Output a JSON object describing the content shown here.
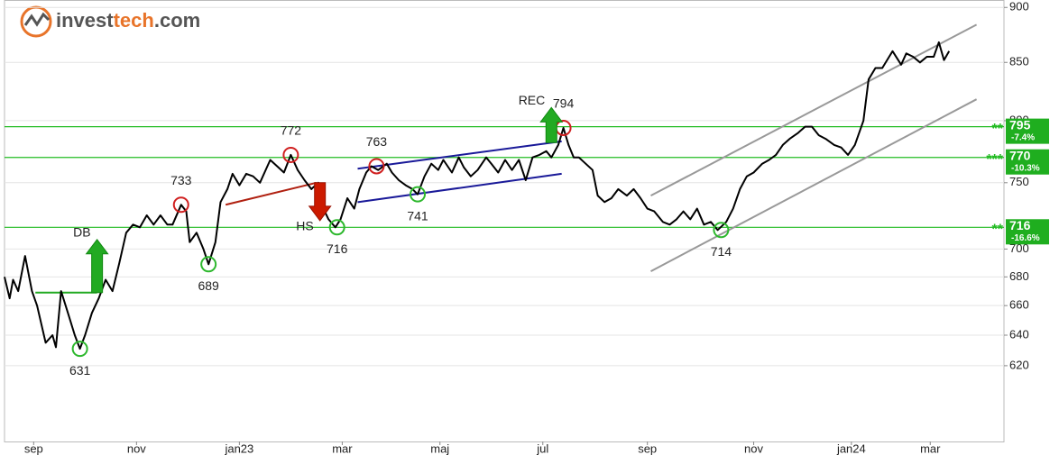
{
  "chart_data": {
    "type": "line",
    "logo_parts": [
      "invest",
      "tech",
      ".com"
    ],
    "log_scale": true,
    "grid": true,
    "color": "#000000",
    "xlim": [
      0,
      583
    ],
    "ylim": [
      573,
      907
    ],
    "yticks": [
      620,
      640,
      660,
      680,
      700,
      750,
      800,
      850,
      900
    ],
    "xticks": [
      {
        "value": 17,
        "label": "sep"
      },
      {
        "value": 77,
        "label": "nov"
      },
      {
        "value": 137,
        "label": "jan23"
      },
      {
        "value": 197,
        "label": "mar"
      },
      {
        "value": 254,
        "label": "maj"
      },
      {
        "value": 314,
        "label": "jul"
      },
      {
        "value": 375,
        "label": "sep"
      },
      {
        "value": 437,
        "label": "nov"
      },
      {
        "value": 494,
        "label": "jan24"
      },
      {
        "value": 540,
        "label": "mar"
      }
    ],
    "x": [
      0,
      3,
      5,
      8,
      12,
      16,
      19,
      24,
      28,
      30,
      33,
      37,
      41,
      44,
      47,
      51,
      55,
      59,
      63,
      67,
      71,
      75,
      79,
      83,
      87,
      91,
      95,
      98,
      103,
      106,
      108,
      112,
      116,
      119,
      123,
      126,
      130,
      133,
      137,
      141,
      145,
      149,
      153,
      155,
      159,
      163,
      167,
      171,
      175,
      179,
      183,
      186,
      189,
      193,
      196,
      200,
      204,
      207,
      211,
      214,
      218,
      223,
      226,
      230,
      234,
      238,
      241,
      245,
      249,
      253,
      256,
      261,
      265,
      268,
      272,
      276,
      281,
      284,
      288,
      292,
      296,
      300,
      304,
      308,
      312,
      316,
      319,
      323,
      326,
      329,
      332,
      335,
      339,
      343,
      346,
      350,
      354,
      358,
      363,
      367,
      371,
      375,
      379,
      384,
      388,
      392,
      396,
      400,
      404,
      408,
      412,
      416,
      421,
      425,
      429,
      433,
      437,
      442,
      446,
      450,
      454,
      458,
      463,
      467,
      471,
      475,
      479,
      484,
      488,
      492,
      496,
      501,
      504,
      508,
      512,
      516,
      518,
      523,
      526,
      530,
      534,
      538,
      542,
      545,
      548,
      551
    ],
    "values": [
      680,
      665,
      678,
      670,
      695,
      670,
      660,
      635,
      640,
      632,
      670,
      655,
      640,
      631,
      640,
      655,
      665,
      678,
      670,
      690,
      712,
      718,
      716,
      725,
      718,
      725,
      718,
      718,
      733,
      728,
      705,
      712,
      700,
      689,
      705,
      735,
      745,
      757,
      748,
      757,
      755,
      750,
      762,
      768,
      763,
      758,
      772,
      760,
      752,
      745,
      750,
      730,
      722,
      716,
      722,
      738,
      730,
      745,
      758,
      763,
      760,
      765,
      758,
      752,
      748,
      745,
      741,
      755,
      765,
      760,
      768,
      758,
      770,
      762,
      755,
      760,
      770,
      765,
      758,
      768,
      760,
      768,
      752,
      770,
      772,
      775,
      770,
      780,
      794,
      780,
      770,
      770,
      765,
      760,
      740,
      735,
      738,
      745,
      740,
      745,
      738,
      730,
      728,
      720,
      718,
      722,
      728,
      722,
      730,
      718,
      720,
      714,
      720,
      730,
      745,
      755,
      758,
      765,
      768,
      772,
      780,
      785,
      790,
      795,
      795,
      788,
      785,
      780,
      778,
      772,
      780,
      800,
      835,
      845,
      845,
      855,
      860,
      848,
      858,
      855,
      850,
      855,
      855,
      868,
      852,
      860
    ],
    "levels": [
      {
        "value": 795,
        "change": "-7.4%",
        "stars": "**"
      },
      {
        "value": 770,
        "change": "-10.3%",
        "stars": "***"
      },
      {
        "value": 716,
        "change": "-16.6%",
        "stars": "**"
      }
    ],
    "points": [
      {
        "x": 44,
        "value": 631,
        "color": "#2db82d",
        "side": "below"
      },
      {
        "x": 119,
        "value": 689,
        "color": "#2db82d",
        "side": "below"
      },
      {
        "x": 103,
        "value": 733,
        "color": "#d02020",
        "side": "above"
      },
      {
        "x": 167,
        "value": 772,
        "color": "#d02020",
        "side": "above"
      },
      {
        "x": 194,
        "value": 716,
        "color": "#2db82d",
        "side": "below"
      },
      {
        "x": 217,
        "value": 763,
        "color": "#d02020",
        "side": "above"
      },
      {
        "x": 241,
        "value": 741,
        "color": "#2db82d",
        "side": "below"
      },
      {
        "x": 326,
        "value": 794,
        "color": "#d02020",
        "side": "above"
      },
      {
        "x": 418,
        "value": 714,
        "color": "#2db82d",
        "side": "below"
      }
    ],
    "signals": [
      {
        "label": "DB",
        "x": 54,
        "base": 669,
        "tip": 707,
        "color": "#22aa22"
      },
      {
        "label": "HS",
        "x": 184,
        "base": 750,
        "tip": 721,
        "color": "#cc1a00"
      },
      {
        "label": "REC",
        "x": 319,
        "base": 782,
        "tip": 811,
        "color": "#22aa22"
      }
    ],
    "trendlines": [
      {
        "x": [
          18,
          54
        ],
        "y": [
          669,
          669
        ],
        "color": "#22aa22"
      },
      {
        "x": [
          129,
          182
        ],
        "y": [
          733,
          750
        ],
        "color": "#b02010"
      },
      {
        "x": [
          206,
          325
        ],
        "y": [
          761,
          783
        ],
        "color": "#1a1a99"
      },
      {
        "x": [
          206,
          325
        ],
        "y": [
          735,
          757
        ],
        "color": "#1a1a99"
      },
      {
        "x": [
          377,
          567
        ],
        "y": [
          740,
          884
        ],
        "color": "#999999"
      },
      {
        "x": [
          377,
          567
        ],
        "y": [
          684,
          818
        ],
        "color": "#999999"
      }
    ]
  }
}
